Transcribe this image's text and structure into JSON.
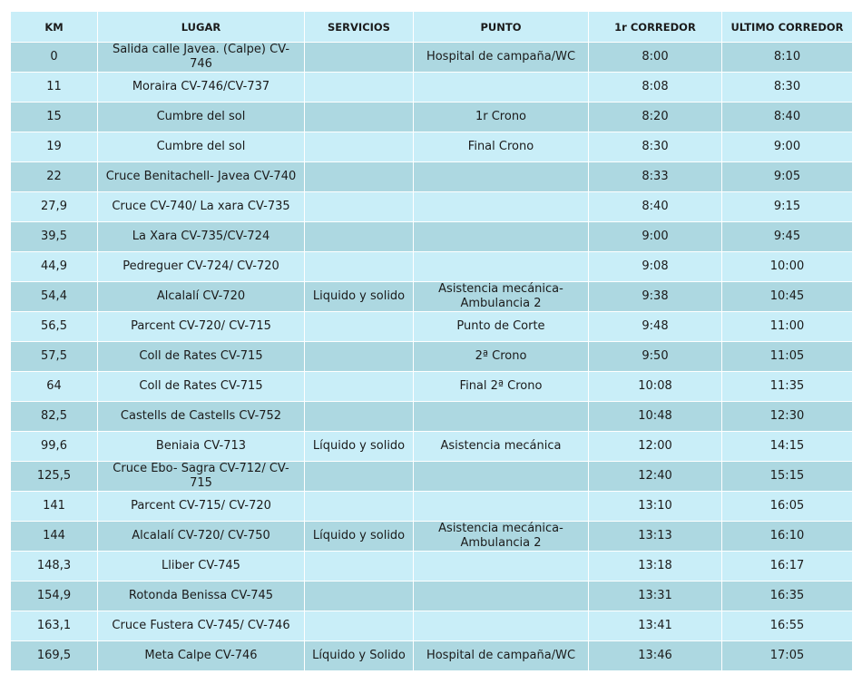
{
  "table": {
    "headers": {
      "km": "KM",
      "lugar": "LUGAR",
      "servicios": "SERVICIOS",
      "punto": "PUNTO",
      "primero": "1r CORREDOR",
      "ultimo": "ULTIMO CORREDOR"
    },
    "rows": [
      {
        "km": "0",
        "lugar": "Salida calle Javea. (Calpe) CV-746",
        "servicios": "",
        "punto": "Hospital de campaña/WC",
        "primero": "8:00",
        "ultimo": "8:10"
      },
      {
        "km": "11",
        "lugar": "Moraira  CV-746/CV-737",
        "servicios": "",
        "punto": "",
        "primero": "8:08",
        "ultimo": "8:30"
      },
      {
        "km": "15",
        "lugar": "Cumbre del sol",
        "servicios": "",
        "punto": "1r Crono",
        "primero": "8:20",
        "ultimo": "8:40"
      },
      {
        "km": "19",
        "lugar": "Cumbre del sol",
        "servicios": "",
        "punto": "Final Crono",
        "primero": "8:30",
        "ultimo": "9:00"
      },
      {
        "km": "22",
        "lugar": "Cruce Benitachell- Javea CV-740",
        "servicios": "",
        "punto": "",
        "primero": "8:33",
        "ultimo": "9:05"
      },
      {
        "km": "27,9",
        "lugar": "Cruce CV-740/ La xara CV-735",
        "servicios": "",
        "punto": "",
        "primero": "8:40",
        "ultimo": "9:15"
      },
      {
        "km": "39,5",
        "lugar": "La Xara CV-735/CV-724",
        "servicios": "",
        "punto": "",
        "primero": "9:00",
        "ultimo": "9:45"
      },
      {
        "km": "44,9",
        "lugar": "Pedreguer CV-724/ CV-720",
        "servicios": "",
        "punto": "",
        "primero": "9:08",
        "ultimo": "10:00"
      },
      {
        "km": "54,4",
        "lugar": "Alcalalí CV-720",
        "servicios": "Liquido y solido",
        "punto": "Asistencia mecánica- Ambulancia 2",
        "primero": "9:38",
        "ultimo": "10:45"
      },
      {
        "km": "56,5",
        "lugar": "Parcent CV-720/ CV-715",
        "servicios": "",
        "punto": "Punto de Corte",
        "primero": "9:48",
        "ultimo": "11:00"
      },
      {
        "km": "57,5",
        "lugar": "Coll de Rates CV-715",
        "servicios": "",
        "punto": "2ª Crono",
        "primero": "9:50",
        "ultimo": "11:05"
      },
      {
        "km": "64",
        "lugar": "Coll de Rates CV-715",
        "servicios": "",
        "punto": "Final 2ª Crono",
        "primero": "10:08",
        "ultimo": "11:35"
      },
      {
        "km": "82,5",
        "lugar": "Castells de Castells CV-752",
        "servicios": "",
        "punto": "",
        "primero": "10:48",
        "ultimo": "12:30"
      },
      {
        "km": "99,6",
        "lugar": "Beniaia CV-713",
        "servicios": "Líquido y solido",
        "punto": "Asistencia mecánica",
        "primero": "12:00",
        "ultimo": "14:15"
      },
      {
        "km": "125,5",
        "lugar": "Cruce Ebo- Sagra CV-712/ CV-715",
        "servicios": "",
        "punto": "",
        "primero": "12:40",
        "ultimo": "15:15"
      },
      {
        "km": "141",
        "lugar": "Parcent CV-715/ CV-720",
        "servicios": "",
        "punto": "",
        "primero": "13:10",
        "ultimo": "16:05"
      },
      {
        "km": "144",
        "lugar": "Alcalalí CV-720/ CV-750",
        "servicios": "Líquido y solido",
        "punto": "Asistencia mecánica- Ambulancia 2",
        "primero": "13:13",
        "ultimo": "16:10"
      },
      {
        "km": "148,3",
        "lugar": "Lliber CV-745",
        "servicios": "",
        "punto": "",
        "primero": "13:18",
        "ultimo": "16:17"
      },
      {
        "km": "154,9",
        "lugar": "Rotonda Benissa  CV-745",
        "servicios": "",
        "punto": "",
        "primero": "13:31",
        "ultimo": "16:35"
      },
      {
        "km": "163,1",
        "lugar": "Cruce Fustera CV-745/ CV-746",
        "servicios": "",
        "punto": "",
        "primero": "13:41",
        "ultimo": "16:55"
      },
      {
        "km": "169,5",
        "lugar": "Meta Calpe CV-746",
        "servicios": "Líquido y Solido",
        "punto": "Hospital de campaña/WC",
        "primero": "13:46",
        "ultimo": "17:05"
      }
    ]
  },
  "colors": {
    "header_bg": "#c9eef8",
    "row_dark": "#add8e1",
    "row_light": "#c9eef8",
    "text": "#1b1b1b",
    "border": "#ffffff"
  }
}
